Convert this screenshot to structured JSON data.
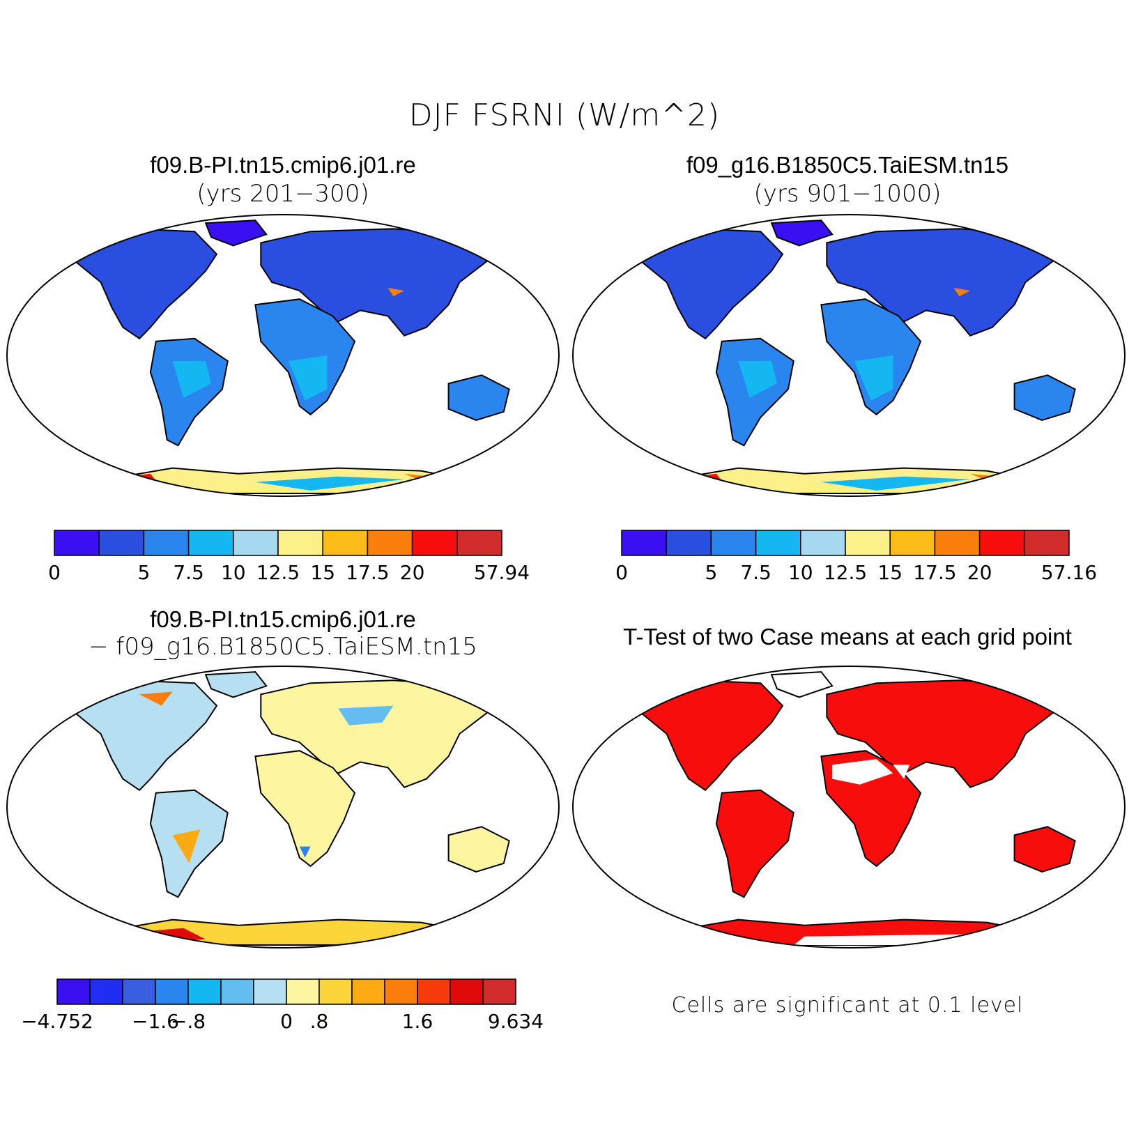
{
  "figure_title": "DJF FSRNI (W/m^2)",
  "panels": [
    {
      "title": "f09.B-PI.tn15.cmip6.j01.re",
      "subtitle": "(yrs 201−300)",
      "colorbar": {
        "labels": [
          "0",
          "5",
          "7.5",
          "10",
          "12.5",
          "15",
          "17.5",
          "20",
          "57.94"
        ],
        "colors": [
          "#3a10f2",
          "#2a4fe0",
          "#2a86ee",
          "#14b7f2",
          "#a6d8ef",
          "#fbf08a",
          "#fbbc17",
          "#f97e0c",
          "#f70e0c",
          "#d22b2b"
        ]
      }
    },
    {
      "title": "f09_g16.B1850C5.TaiESM.tn15",
      "subtitle": "(yrs 901−1000)",
      "colorbar": {
        "labels": [
          "0",
          "5",
          "7.5",
          "10",
          "12.5",
          "15",
          "17.5",
          "20",
          "57.16"
        ],
        "colors": [
          "#3a10f2",
          "#2a4fe0",
          "#2a86ee",
          "#14b7f2",
          "#a6d8ef",
          "#fbf08a",
          "#fbbc17",
          "#f97e0c",
          "#f70e0c",
          "#d22b2b"
        ]
      }
    },
    {
      "title": "f09.B-PI.tn15.cmip6.j01.re",
      "subtitle": "− f09_g16.B1850C5.TaiESM.tn15",
      "colorbar": {
        "labels": [
          "−4.752",
          "−1.6",
          "−.8",
          "0",
          ".8",
          "1.6",
          "9.634"
        ],
        "colors": [
          "#3a10f2",
          "#1f2ef2",
          "#3a5ee0",
          "#2a86ee",
          "#14b7f2",
          "#63bdf0",
          "#b6dff2",
          "#fdf5a0",
          "#fcd53a",
          "#fbaa13",
          "#f97e0c",
          "#f73a0c",
          "#e10a0a",
          "#d22b2b"
        ]
      }
    },
    {
      "title": "T-Test of two Case means at each grid point",
      "note": "Cells are significant at 0.1 level"
    }
  ]
}
